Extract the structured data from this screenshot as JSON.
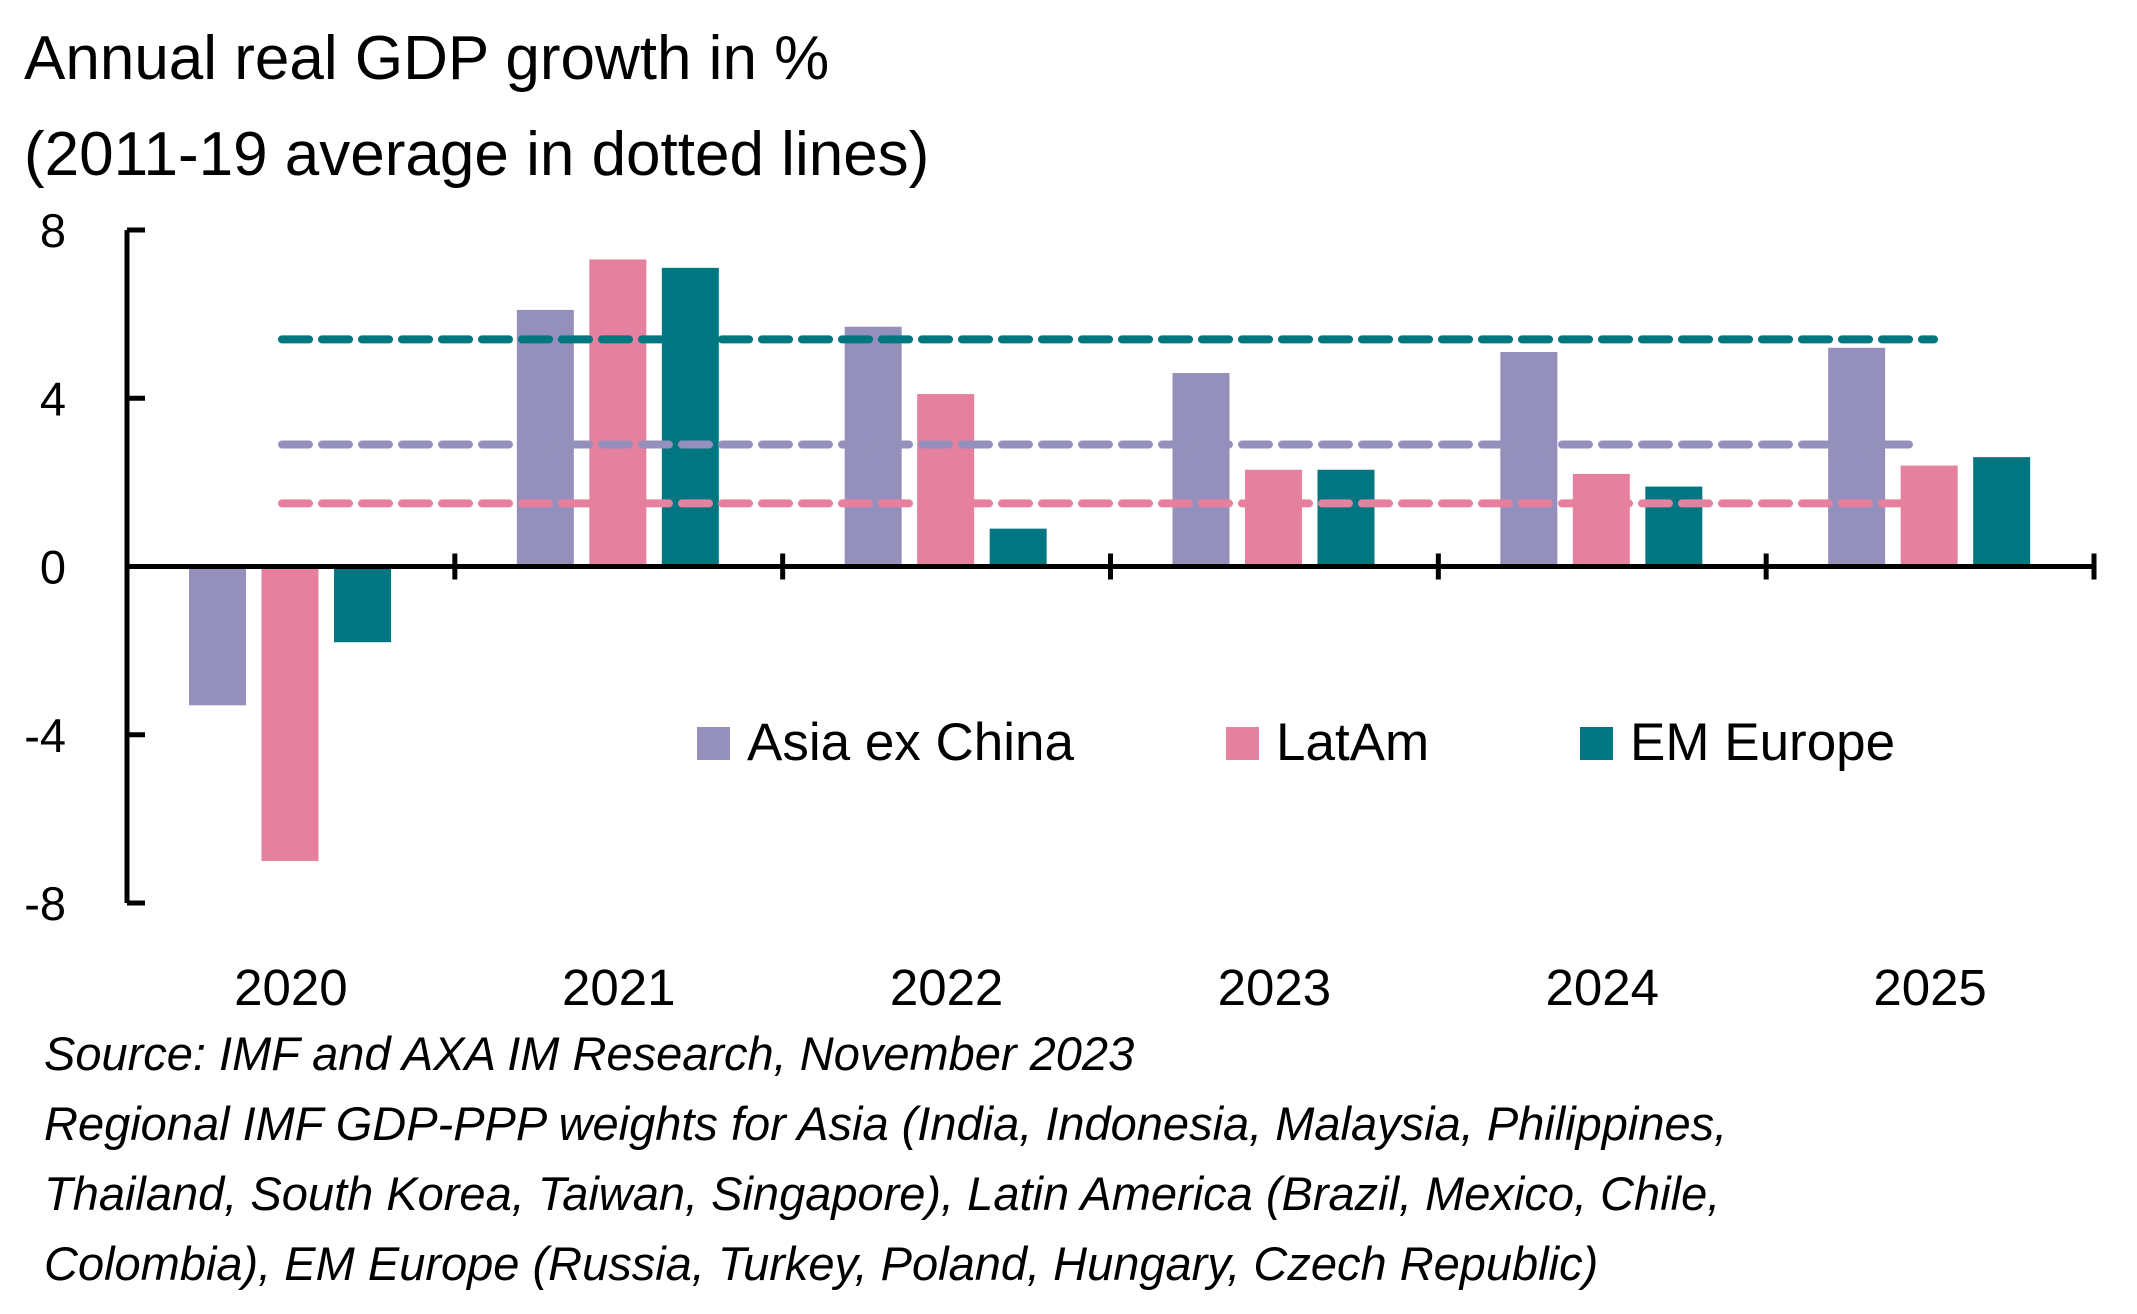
{
  "title_lines": [
    "Annual real GDP growth in %",
    "(2011-19 average in dotted lines)"
  ],
  "chart_data": {
    "type": "bar",
    "categories": [
      "2020",
      "2021",
      "2022",
      "2023",
      "2024",
      "2025"
    ],
    "series": [
      {
        "name": "Asia ex China",
        "color": "#9490bb",
        "values": [
          -3.3,
          6.1,
          5.7,
          4.6,
          5.1,
          5.2
        ]
      },
      {
        "name": "LatAm",
        "color": "#e5819f",
        "values": [
          -7.0,
          7.3,
          4.1,
          2.3,
          2.2,
          2.4
        ]
      },
      {
        "name": "EM Europe",
        "color": "#007680",
        "values": [
          -1.8,
          7.1,
          0.9,
          2.3,
          1.9,
          2.6
        ]
      }
    ],
    "averages": [
      {
        "series": "EM Europe",
        "value": 5.4,
        "color": "#007680"
      },
      {
        "series": "Asia ex China",
        "value": 2.9,
        "color": "#9490bb"
      },
      {
        "series": "LatAm",
        "value": 1.5,
        "color": "#e5819f"
      }
    ],
    "yticks": [
      "8",
      "4",
      "0",
      "-4",
      "-8"
    ],
    "ytick_values": [
      8,
      4,
      0,
      -4,
      -8
    ],
    "ylim": [
      -8,
      8
    ],
    "legend_position": "lower-right, inside plot",
    "grid": false
  },
  "notes": [
    "Source: IMF and AXA IM Research, November 2023",
    "Regional IMF GDP-PPP weights for Asia (India, Indonesia, Malaysia, Philippines,",
    "Thailand, South Korea, Taiwan, Singapore), Latin America (Brazil, Mexico, Chile,",
    "Colombia), EM Europe (Russia, Turkey, Poland, Hungary, Czech Republic)"
  ]
}
